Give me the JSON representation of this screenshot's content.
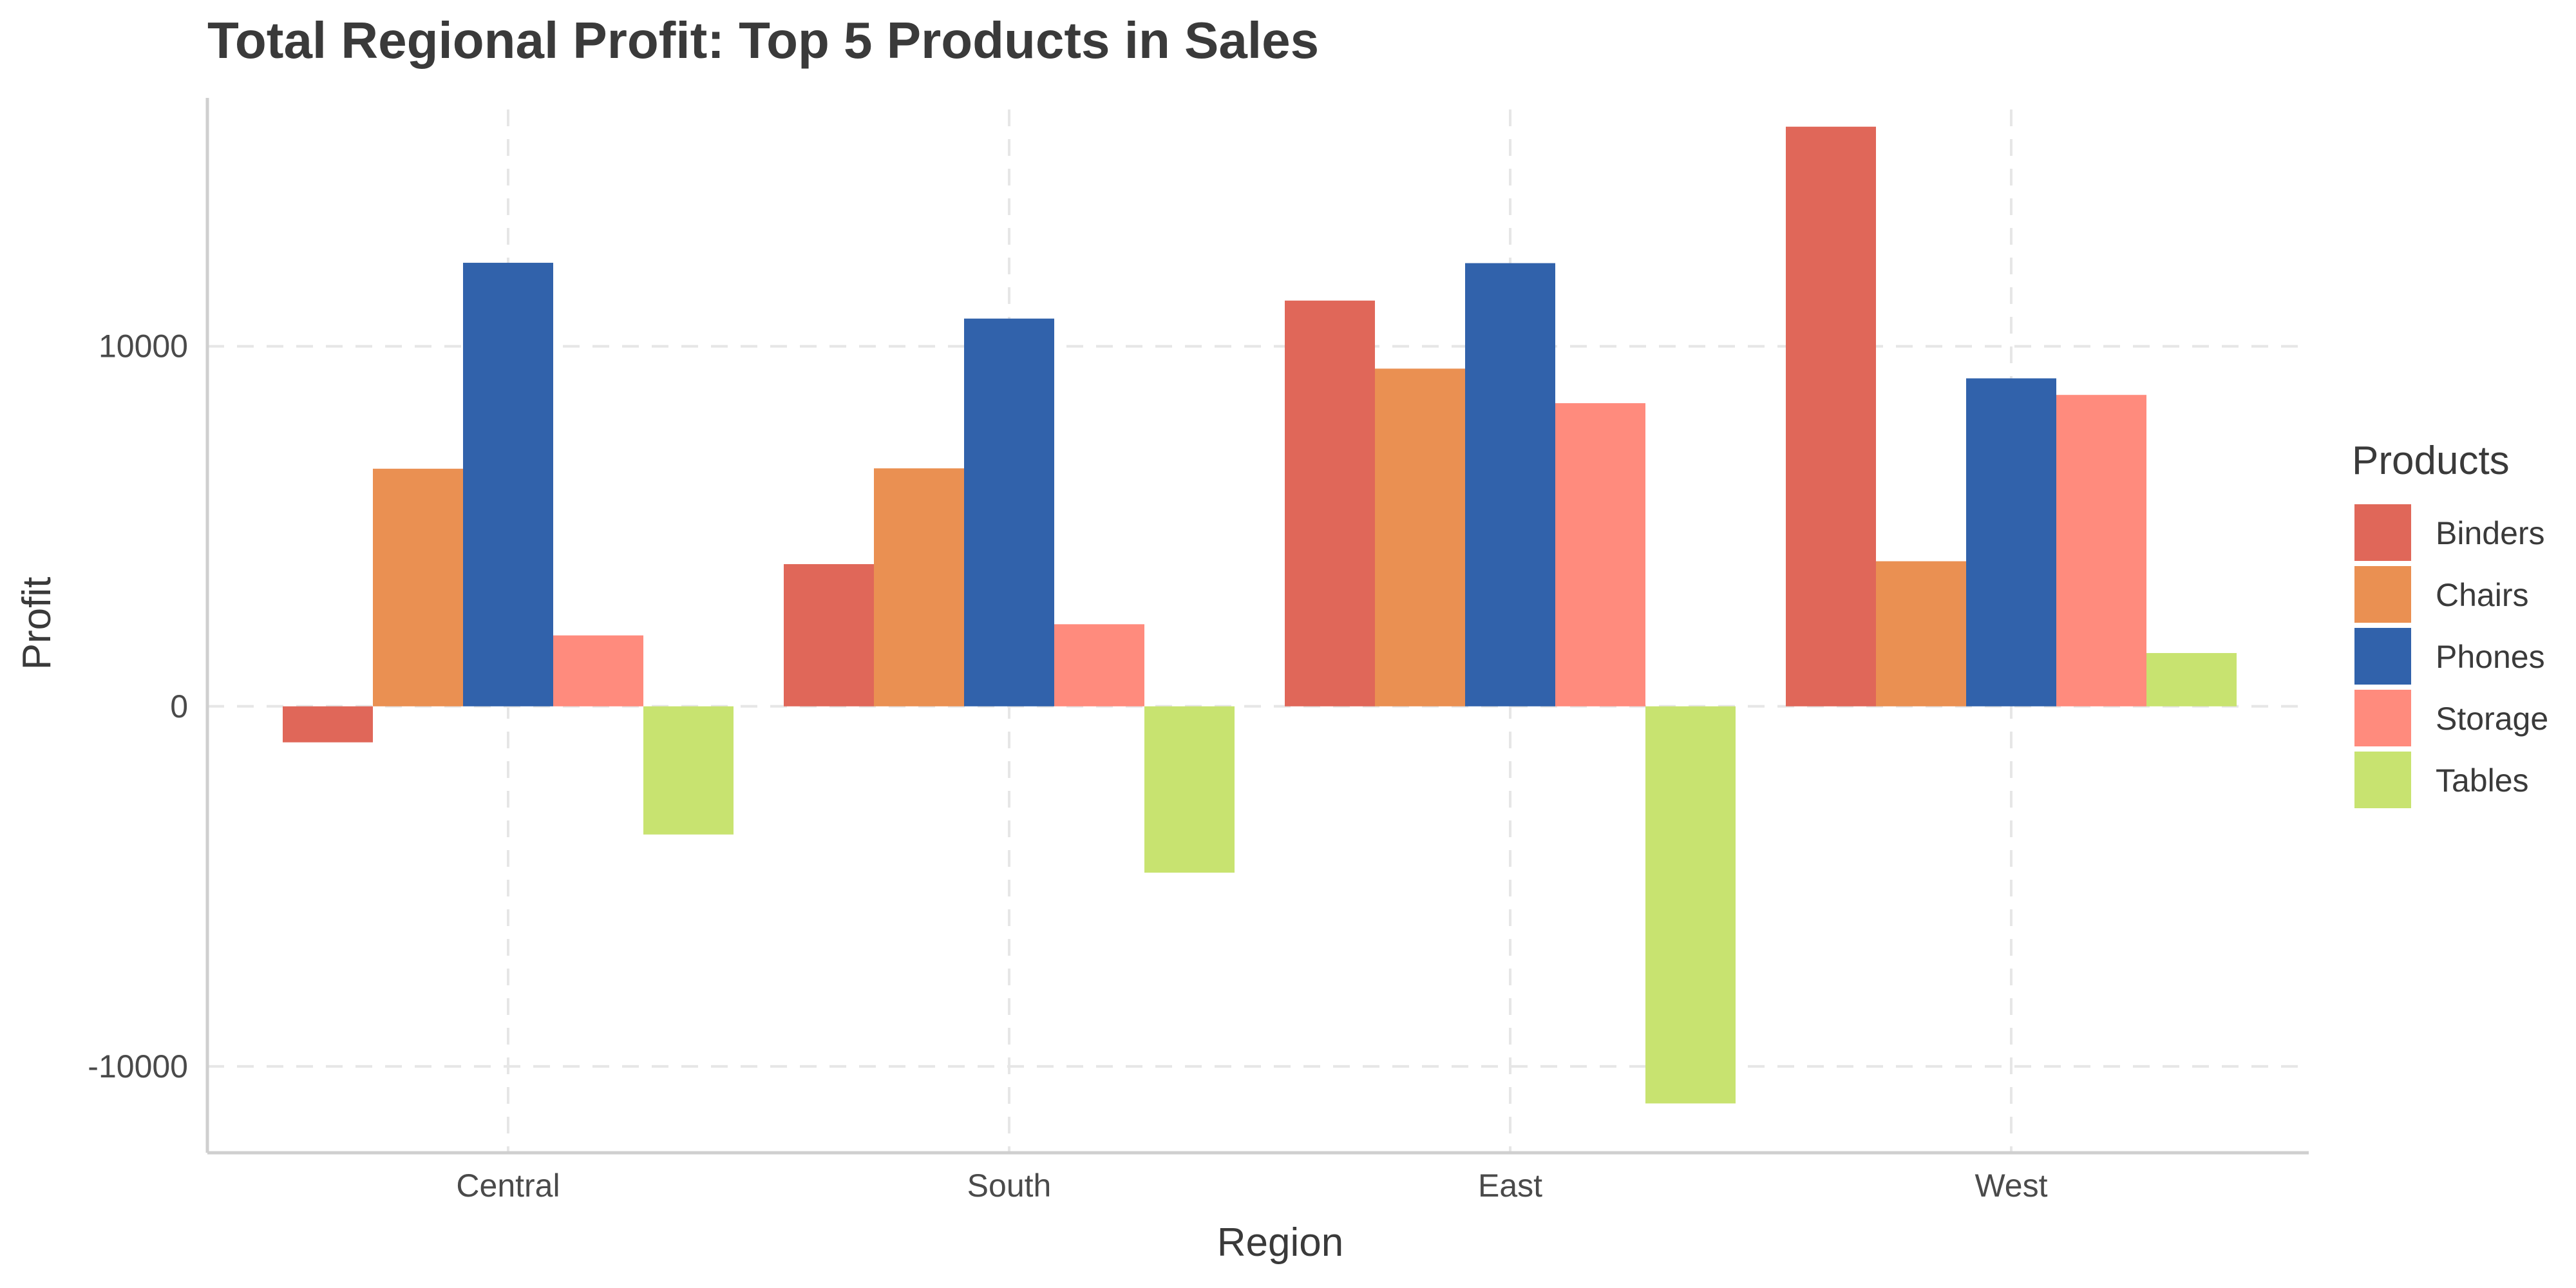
{
  "chart_data": {
    "type": "bar",
    "title": "Total Regional Profit: Top 5 Products in Sales",
    "xlabel": "Region",
    "ylabel": "Profit",
    "categories": [
      "Central",
      "South",
      "East",
      "West"
    ],
    "ylim": [
      -12400,
      16900
    ],
    "yticks": [
      -10000,
      0,
      10000
    ],
    "ytick_labels": [
      "-10000",
      "0",
      "10000"
    ],
    "grid": true,
    "legend": {
      "title": "Products",
      "position": "right"
    },
    "series": [
      {
        "name": "Binders",
        "color": "#e06759",
        "values": [
          -1000,
          3950,
          11270,
          16100
        ]
      },
      {
        "name": "Chairs",
        "color": "#ea9052",
        "values": [
          6600,
          6610,
          9380,
          4030
        ]
      },
      {
        "name": "Phones",
        "color": "#3162ab",
        "values": [
          12320,
          10770,
          12310,
          9110
        ]
      },
      {
        "name": "Storage",
        "color": "#ff8b7d",
        "values": [
          1970,
          2280,
          8420,
          8650
        ]
      },
      {
        "name": "Tables",
        "color": "#c8e370",
        "values": [
          -3560,
          -4620,
          -11030,
          1480
        ]
      }
    ]
  }
}
